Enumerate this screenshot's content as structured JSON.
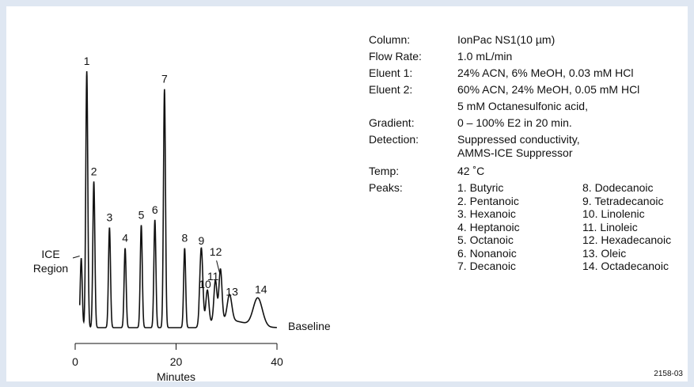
{
  "chart_data": {
    "type": "line",
    "xlabel": "Minutes",
    "x_ticks": [
      0,
      20,
      40
    ],
    "xlim": [
      0,
      40
    ],
    "ylim": [
      0,
      100
    ],
    "baseline_label": "Baseline",
    "region_label": [
      "ICE",
      "Region"
    ],
    "series": [
      {
        "peaks": [
          {
            "label": "ICE",
            "x": 1.2,
            "y": 27
          },
          {
            "label": "1",
            "x": 2.3,
            "y": 100
          },
          {
            "label": "2",
            "x": 3.7,
            "y": 57
          },
          {
            "label": "3",
            "x": 6.8,
            "y": 39
          },
          {
            "label": "4",
            "x": 9.9,
            "y": 31
          },
          {
            "label": "5",
            "x": 13.1,
            "y": 40
          },
          {
            "label": "6",
            "x": 15.8,
            "y": 42
          },
          {
            "label": "7",
            "x": 17.7,
            "y": 93
          },
          {
            "label": "8",
            "x": 21.7,
            "y": 31
          },
          {
            "label": "9",
            "x": 25.0,
            "y": 30
          },
          {
            "label": "10",
            "x": 26.2,
            "y": 13
          },
          {
            "label": "11",
            "x": 27.8,
            "y": 16
          },
          {
            "label": "12",
            "x": 28.8,
            "y": 20
          },
          {
            "label": "13",
            "x": 30.6,
            "y": 10
          },
          {
            "label": "14",
            "x": 36.2,
            "y": 11
          }
        ]
      }
    ]
  },
  "info": {
    "rows": [
      {
        "label": "Column:",
        "value": "IonPac  NS1(10 µm)"
      },
      {
        "label": "Flow Rate:",
        "value": "1.0 mL/min"
      },
      {
        "label": "Eluent 1:",
        "value": "24% ACN, 6% MeOH, 0.03 mM HCl"
      },
      {
        "label": "Eluent 2:",
        "value": "60% ACN, 24% MeOH, 0.05 mM HCl"
      },
      {
        "label": "",
        "value": "5 mM Octanesulfonic acid,"
      },
      {
        "label": "Gradient:",
        "value": "0 – 100% E2 in 20 min."
      },
      {
        "label": "Detection:",
        "value": "Suppressed conductivity,",
        "value2": "AMMS-ICE Suppressor"
      },
      {
        "label": "Temp:",
        "value": "42 ˚C"
      }
    ],
    "peaks_label": "Peaks:",
    "peaks": [
      "1. Butyric",
      "8. Dodecanoic",
      "2. Pentanoic",
      "9. Tetradecanoic",
      "3. Hexanoic",
      "10. Linolenic",
      "4. Heptanoic",
      "11. Linoleic",
      "5. Octanoic",
      "12. Hexadecanoic",
      "6. Nonanoic",
      "13. Oleic",
      "7. Decanoic",
      "14. Octadecanoic"
    ]
  },
  "figure_code": "2158-03",
  "colors": {
    "background": "#dfe7f2",
    "panel": "#ffffff",
    "ink": "#111111"
  }
}
